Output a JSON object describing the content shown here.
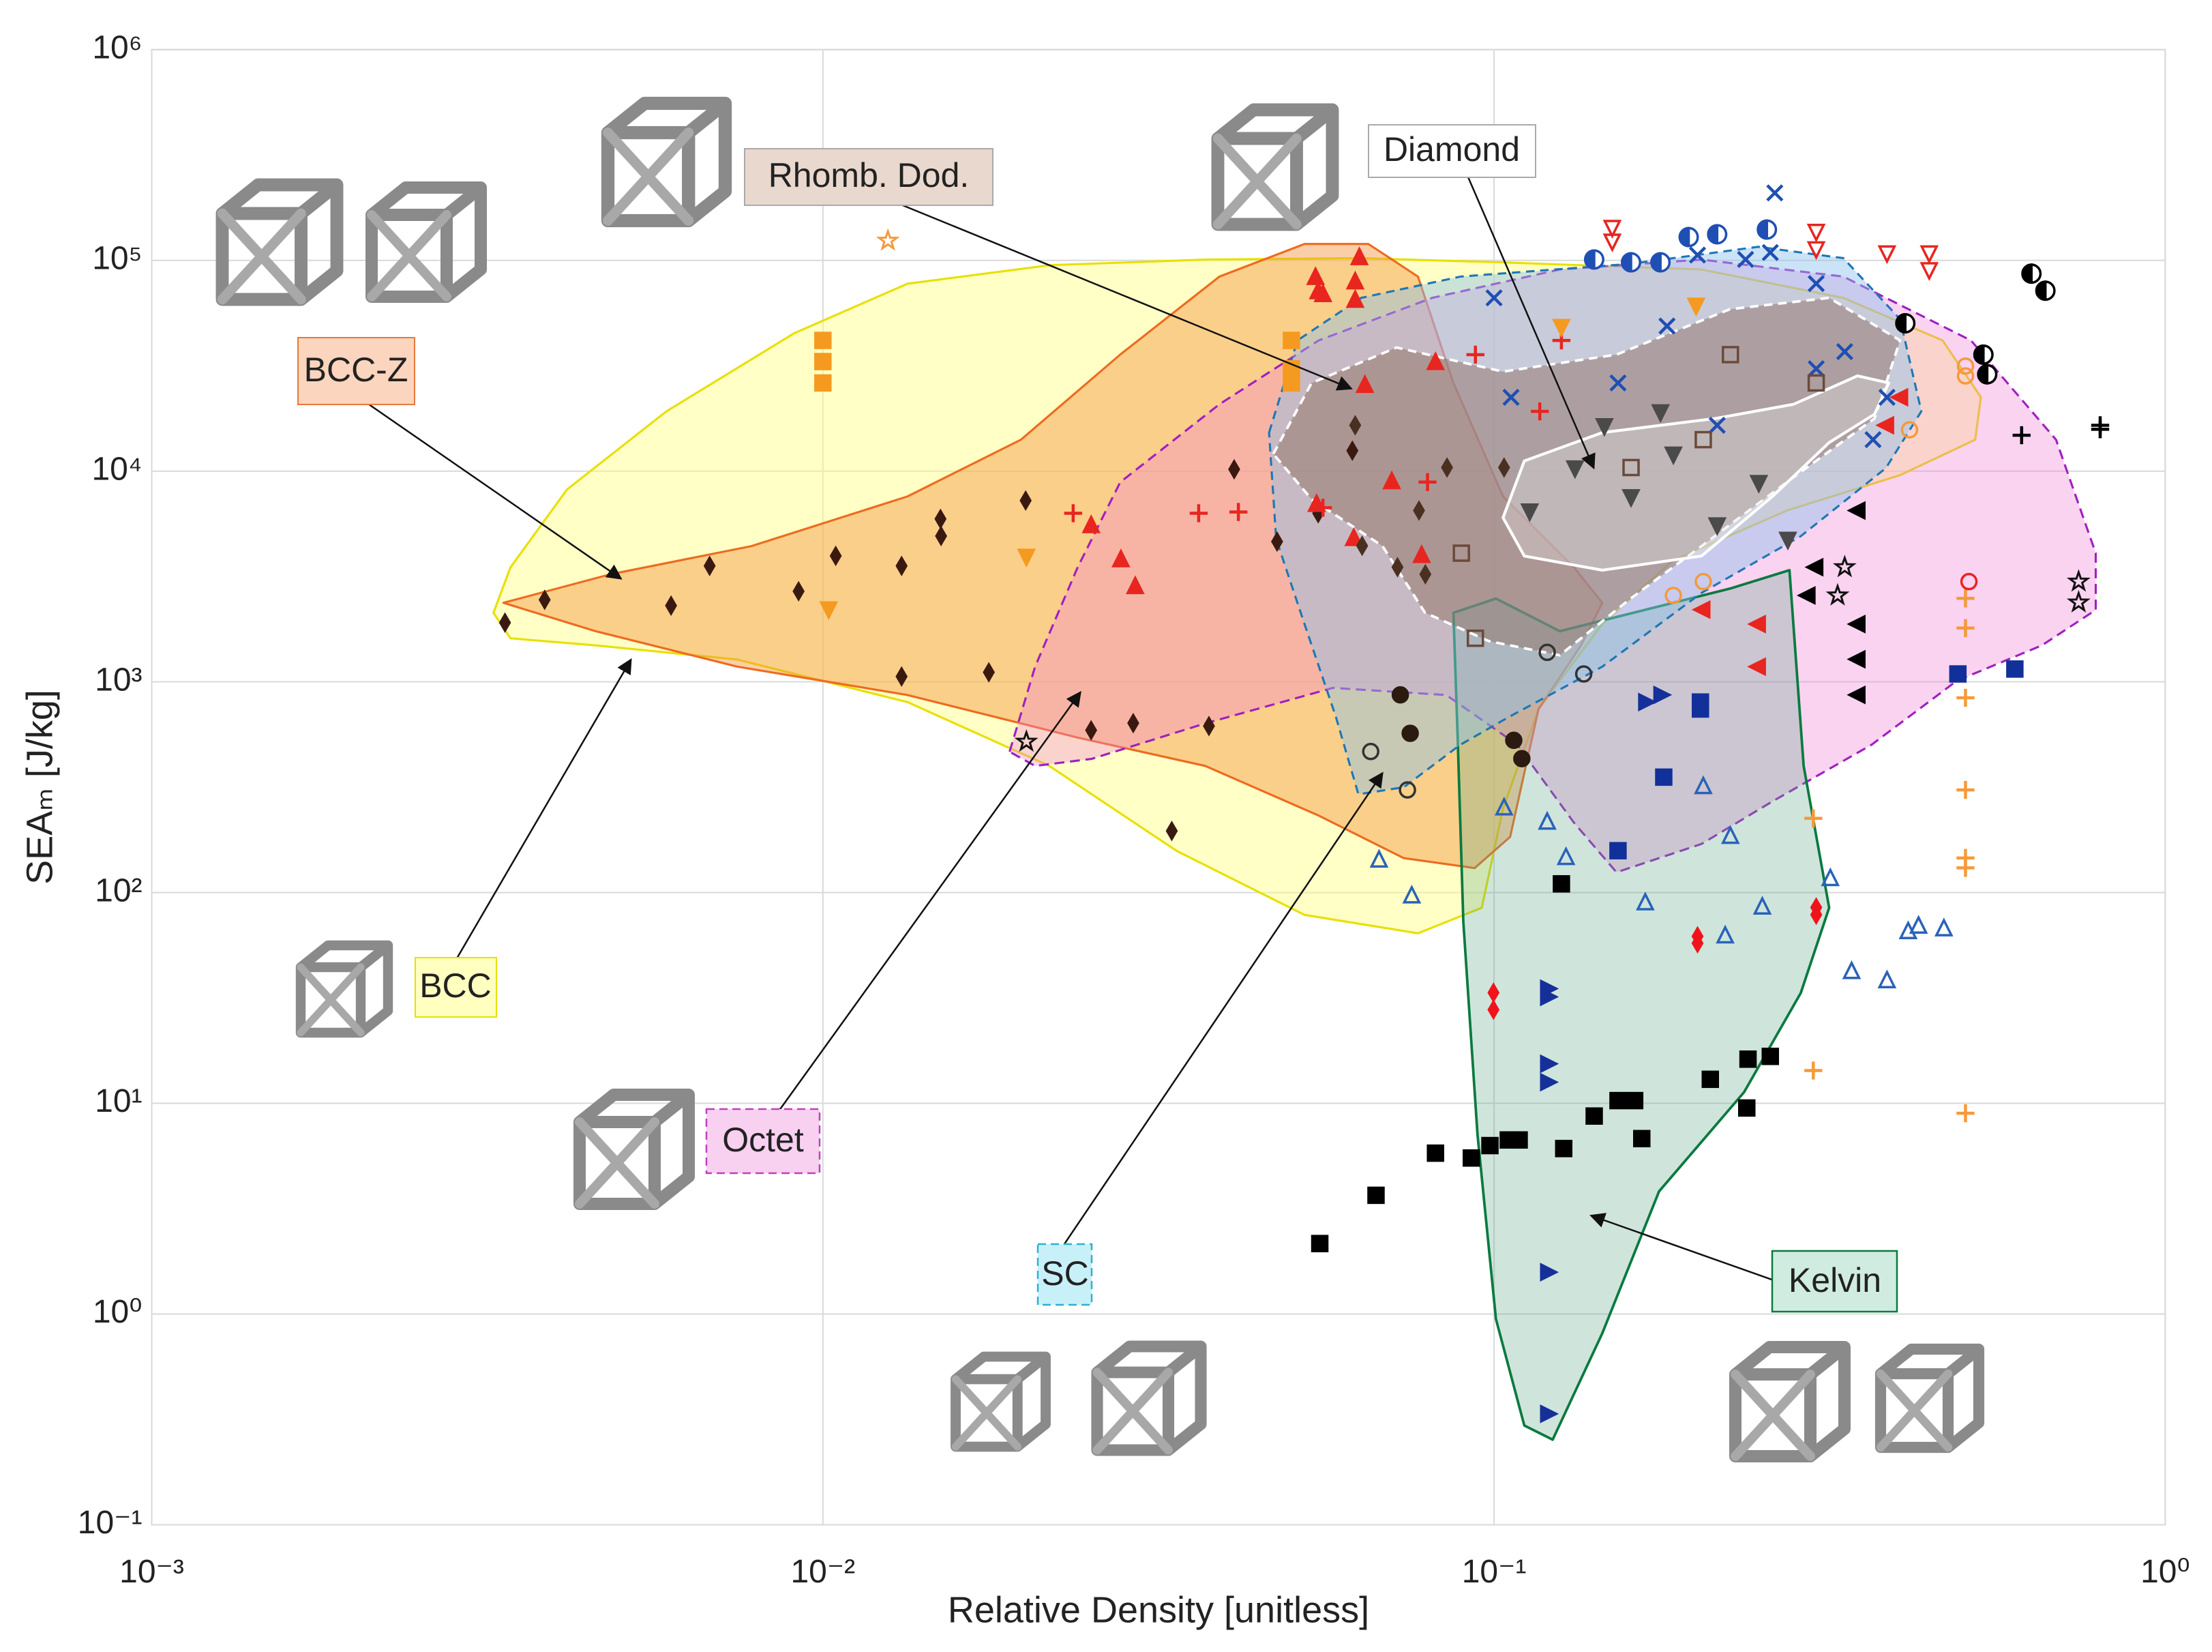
{
  "chart_data": {
    "type": "scatter",
    "x_label": "Relative Density [unitless]",
    "y_label": "SEAₘ [J/kg]",
    "xscale": "log",
    "yscale": "log",
    "grid": true,
    "xlim": [
      0.001,
      1
    ],
    "ylim": [
      0.1,
      1000000
    ],
    "xticks": [
      {
        "value": 0.001,
        "label": "10⁻³"
      },
      {
        "value": 0.01,
        "label": "10⁻²"
      },
      {
        "value": 0.1,
        "label": "10⁻¹"
      },
      {
        "value": 1,
        "label": "10⁰"
      }
    ],
    "yticks": [
      {
        "value": 0.1,
        "label": "10⁻¹"
      },
      {
        "value": 1,
        "label": "10⁰"
      },
      {
        "value": 10,
        "label": "10¹"
      },
      {
        "value": 100,
        "label": "10²"
      },
      {
        "value": 1000,
        "label": "10³"
      },
      {
        "value": 10000,
        "label": "10⁴"
      },
      {
        "value": 100000,
        "label": "10⁵"
      },
      {
        "value": 1000000,
        "label": "10⁶"
      }
    ],
    "annotations": [
      "Rhomb. Dod.",
      "Diamond",
      "BCC-Z",
      "BCC",
      "Octet",
      "SC",
      "Kelvin"
    ],
    "series": [
      {
        "marker": "square",
        "filled": true,
        "color": "#000000",
        "x": [
          0.055,
          0.0667,
          0.0818,
          0.0925,
          0.0986,
          0.105,
          0.109,
          0.127,
          0.141,
          0.153,
          0.162,
          0.166,
          0.21,
          0.238,
          0.239,
          0.258,
          0.126
        ],
        "values": [
          2.16,
          3.66,
          5.8,
          5.5,
          6.3,
          6.7,
          6.7,
          6.1,
          8.7,
          10.3,
          10.3,
          6.8,
          13,
          9.5,
          16.2,
          16.7,
          110
        ]
      },
      {
        "marker": "diamond",
        "filled": true,
        "color": "#3a1a10",
        "x": [
          0.00336,
          0.00385,
          0.00594,
          0.00678,
          0.0092,
          0.01045,
          0.0131,
          0.01497,
          0.015,
          0.02005,
          0.01767,
          0.0131,
          0.0251,
          0.029,
          0.0331,
          0.0376,
          0.041,
          0.0475,
          0.0547,
          0.0615
        ],
        "values": [
          1910,
          2450,
          2300,
          3550,
          2690,
          3960,
          3550,
          5930,
          4920,
          7250,
          1110,
          1060,
          589,
          637,
          196,
          617,
          10200,
          4630,
          6310,
          12500
        ]
      },
      {
        "marker": "triangle-up",
        "filled": true,
        "color": "#e8251f",
        "x": [
          0.0542,
          0.0547,
          0.0556,
          0.0621,
          0.0621,
          0.063,
          0.0251,
          0.0278,
          0.0292,
          0.0642,
          0.0704,
          0.078,
          0.0618,
          0.0544,
          0.0818
        ],
        "values": [
          82600,
          70700,
          68500,
          64400,
          78700,
          102600,
          5490,
          3780,
          2820,
          25400,
          8870,
          3960,
          4770,
          6920,
          32600
        ]
      },
      {
        "marker": "plus",
        "filled": true,
        "color": "#e8251f",
        "x": [
          0.0236,
          0.0363,
          0.0416,
          0.0556,
          0.0796,
          0.117,
          0.0938,
          0.126
        ],
        "values": [
          6310,
          6310,
          6400,
          6700,
          8870,
          19200,
          35700,
          41700
        ]
      },
      {
        "marker": "x",
        "filled": true,
        "color": "#1f4fb4",
        "x": [
          0.262,
          0.258,
          0.237,
          0.201,
          0.181,
          0.153,
          0.106,
          0.1,
          0.302,
          0.333,
          0.385,
          0.367,
          0.302,
          0.215
        ],
        "values": [
          209000,
          109000,
          101000,
          106000,
          48800,
          26200,
          22400,
          66400,
          77600,
          36900,
          22400,
          14100,
          30600,
          16500
        ]
      },
      {
        "marker": "triangle-up",
        "filled": false,
        "color": "#2a62b8",
        "x": [
          0.0674,
          0.0754,
          0.128,
          0.168,
          0.221,
          0.251,
          0.341,
          0.385,
          0.414,
          0.429,
          0.468,
          0.1035,
          0.12,
          0.205,
          0.225,
          0.317
        ],
        "values": [
          142,
          96,
          146,
          89,
          62,
          85,
          42,
          38,
          65,
          69,
          67,
          251,
          215,
          317,
          184,
          116
        ]
      },
      {
        "marker": "triangle-right",
        "filled": true,
        "color": "#16309a",
        "x": [
          0.12,
          0.12,
          0.12,
          0.12,
          0.12,
          0.12,
          0.177,
          0.168
        ],
        "values": [
          35,
          32,
          15.4,
          12.6,
          1.58,
          0.336,
          867,
          802
        ]
      },
      {
        "marker": "plus",
        "filled": true,
        "color": "#f59a3a",
        "x": [
          0.504,
          0.504,
          0.504,
          0.504,
          0.504,
          0.504,
          0.504,
          0.299,
          0.299
        ],
        "values": [
          2490,
          1800,
          840,
          307,
          146,
          131,
          8.97,
          14.3,
          225
        ]
      },
      {
        "marker": "square",
        "filled": true,
        "color": "#f59a20",
        "x": [
          0.01,
          0.01,
          0.01,
          0.0499,
          0.0499,
          0.0499
        ],
        "values": [
          41700,
          33100,
          26200,
          41700,
          30600,
          26200
        ]
      },
      {
        "marker": "triangle-down",
        "filled": true,
        "color": "#f59a20",
        "x": [
          0.0102,
          0.0201,
          0.2,
          0.126
        ],
        "values": [
          2230,
          3960,
          61500,
          48800
        ]
      },
      {
        "marker": "half-circle",
        "filled": true,
        "color": "#000000",
        "x": [
          0.632,
          0.663,
          0.536,
          0.543,
          0.41
        ],
        "values": [
          86500,
          71800,
          35700,
          28800,
          50300
        ]
      },
      {
        "marker": "star",
        "filled": false,
        "color": "#111111",
        "x": [
          0.743,
          0.743,
          0.325,
          0.333,
          0.0201
        ],
        "values": [
          2990,
          2380,
          2570,
          3500,
          520
        ]
      },
      {
        "marker": "triangle-left",
        "filled": true,
        "color": "#000000",
        "x": [
          0.349,
          0.349,
          0.349,
          0.302,
          0.294,
          0.349
        ],
        "values": [
          867,
          1280,
          1880,
          3500,
          2570,
          6500
        ]
      },
      {
        "marker": "square",
        "filled": true,
        "color": "#12309a",
        "x": [
          0.179,
          0.203,
          0.203,
          0.153,
          0.491,
          0.597
        ],
        "values": [
          353,
          743,
          802,
          158,
          1090,
          1150
        ]
      },
      {
        "marker": "diamond",
        "filled": true,
        "color": "#f0141a",
        "x": [
          0.0998,
          0.0998,
          0.201,
          0.201,
          0.302,
          0.302
        ],
        "values": [
          33.5,
          27.8,
          62,
          57.5,
          85,
          78.5
        ]
      },
      {
        "marker": "plus",
        "filled": true,
        "color": "#000000",
        "x": [
          0.8,
          0.611,
          0.8
        ],
        "values": [
          16500,
          14800,
          15800
        ]
      },
      {
        "marker": "circle",
        "filled": true,
        "color": "#2a1a10",
        "x": [
          0.0725,
          0.075,
          0.107,
          0.11
        ],
        "values": [
          867,
          570,
          528,
          432
        ]
      },
      {
        "marker": "circle",
        "filled": false,
        "color": "#333333",
        "x": [
          0.0655,
          0.0743,
          0.12,
          0.136
        ],
        "values": [
          467,
          307,
          1380,
          1090
        ]
      },
      {
        "marker": "triangle-down",
        "filled": true,
        "color": "#4a4a4a",
        "x": [
          0.113,
          0.132,
          0.16,
          0.185,
          0.215,
          0.248,
          0.274,
          0.146,
          0.177
        ],
        "values": [
          6500,
          10400,
          7590,
          12100,
          5580,
          8870,
          4770,
          16500,
          19200
        ]
      },
      {
        "marker": "square",
        "filled": false,
        "color": "#6b4a3a",
        "x": [
          0.0894,
          0.0938,
          0.16,
          0.205,
          0.302,
          0.225
        ],
        "values": [
          4080,
          1610,
          10400,
          14100,
          26200,
          35700
        ]
      },
      {
        "marker": "diamond",
        "filled": true,
        "color": "#4a3020",
        "x": [
          0.0636,
          0.0718,
          0.0773,
          0.0851,
          0.0621,
          0.079,
          0.1035
        ],
        "values": [
          4420,
          3500,
          6500,
          10400,
          16500,
          3240,
          10400
        ]
      },
      {
        "marker": "triangle-down",
        "filled": false,
        "color": "#e8251f",
        "x": [
          0.15,
          0.15,
          0.302,
          0.302,
          0.385,
          0.445,
          0.445
        ],
        "values": [
          144000,
          124000,
          138000,
          114000,
          109000,
          109000,
          90700
        ]
      },
      {
        "marker": "half-circle",
        "filled": true,
        "color": "#1f4fb4",
        "x": [
          0.141,
          0.16,
          0.177,
          0.195,
          0.215,
          0.255
        ],
        "values": [
          101000,
          97900,
          97900,
          129000,
          133000,
          140000
        ]
      },
      {
        "marker": "triangle-left",
        "filled": true,
        "color": "#e8251f",
        "x": [
          0.248,
          0.248,
          0.205,
          0.385,
          0.404
        ],
        "values": [
          1880,
          1180,
          2200,
          16500,
          22400
        ]
      },
      {
        "marker": "circle",
        "filled": false,
        "color": "#f59a3a",
        "x": [
          0.504,
          0.504,
          0.416,
          0.205,
          0.185
        ],
        "values": [
          28300,
          31500,
          15700,
          2990,
          2570
        ]
      },
      {
        "marker": "circle",
        "filled": false,
        "color": "#e8251f",
        "x": [
          0.51
        ],
        "values": [
          2990
        ]
      },
      {
        "marker": "star",
        "filled": false,
        "color": "#f59a3a",
        "x": [
          0.0125
        ],
        "values": [
          124000
        ]
      }
    ]
  }
}
